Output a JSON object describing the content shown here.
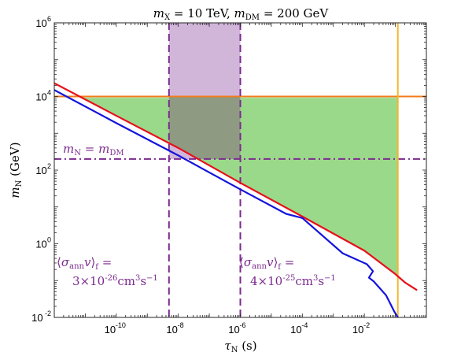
{
  "chart_data": {
    "type": "line",
    "title_parts": {
      "m": "m",
      "sub_x": "X",
      "eq1": " = 10 TeV, ",
      "m2": "m",
      "sub_dm": "DM",
      "eq2": " = 200 GeV"
    },
    "xlabel_parts": {
      "tau": "τ",
      "sub": "N",
      "unit": " (s)"
    },
    "ylabel_parts": {
      "m": "m",
      "sub": "N",
      "unit": " (GeV)"
    },
    "x_scale": "log",
    "y_scale": "log",
    "xlim": [
      1e-12,
      1
    ],
    "ylim": [
      0.01,
      1000000
    ],
    "x_tick_labels": [
      {
        "value": 1e-10,
        "base": "10",
        "exp": "-10"
      },
      {
        "value": 1e-08,
        "base": "10",
        "exp": "-8"
      },
      {
        "value": 1e-06,
        "base": "10",
        "exp": "-6"
      },
      {
        "value": 0.0001,
        "base": "10",
        "exp": "-4"
      },
      {
        "value": 0.01,
        "base": "10",
        "exp": "-2"
      }
    ],
    "y_tick_labels": [
      {
        "value": 0.01,
        "base": "10",
        "exp": "-2"
      },
      {
        "value": 1,
        "base": "10",
        "exp": "0"
      },
      {
        "value": 100,
        "base": "10",
        "exp": "2"
      },
      {
        "value": 10000,
        "base": "10",
        "exp": "4"
      },
      {
        "value": 1000000,
        "base": "10",
        "exp": "6"
      }
    ],
    "grid": false,
    "colors": {
      "red": "#e8101a",
      "blue": "#1414dd",
      "orange": "#f27c1b",
      "yellow": "#f2b630",
      "purple": "#7b2a8e",
      "purple_band": "#c9a9d3",
      "green": "#9bd98a"
    },
    "series": [
      {
        "color": "red",
        "x": [
          1e-12,
          1e-10,
          1e-08,
          1e-06,
          0.0001,
          0.01,
          0.1,
          0.2,
          0.5
        ],
        "y": [
          23000,
          3000,
          400,
          45,
          5.5,
          0.65,
          0.15,
          0.09,
          0.055
        ]
      },
      {
        "color": "blue",
        "x": [
          1e-12,
          1e-10,
          1e-08,
          1e-06,
          3e-05,
          0.0001,
          0.002,
          0.012,
          0.019,
          0.014,
          0.02,
          0.05,
          0.09,
          0.12
        ],
        "y": [
          15000,
          1900,
          250,
          30,
          6.5,
          5,
          0.55,
          0.28,
          0.18,
          0.12,
          0.095,
          0.04,
          0.015,
          0.01
        ]
      }
    ],
    "horizontal_lines": [
      {
        "y": 10000,
        "color": "orange",
        "style": "solid"
      },
      {
        "y": 200,
        "color": "purple",
        "style": "dash-dot",
        "label_parts": {
          "m": "m",
          "sub_n": "N",
          "eq": " = ",
          "m2": "m",
          "sub_dm": "DM"
        }
      }
    ],
    "vertical_lines": [
      {
        "x": 5e-09,
        "color": "purple",
        "style": "dashed"
      },
      {
        "x": 1e-06,
        "color": "purple",
        "style": "dashed"
      },
      {
        "x": 0.12,
        "color": "yellow",
        "style": "solid"
      }
    ],
    "shaded_regions": [
      {
        "type": "band",
        "x": [
          5e-09,
          1e-06
        ],
        "color": "purple_band"
      },
      {
        "type": "allowed",
        "color": "green",
        "x_max": 0.12,
        "y_max": 10000
      }
    ],
    "annotations": [
      {
        "lines": [
          {
            "kind": "sigma"
          },
          {
            "coef": "3",
            "exp": "-26"
          }
        ],
        "x": 1.5e-12,
        "y": 0.3
      },
      {
        "lines": [
          {
            "kind": "sigma"
          },
          {
            "coef": "4",
            "exp": "-25"
          }
        ],
        "x": 1.3e-06,
        "y": 0.3
      }
    ],
    "sigma_parts": {
      "lang": "⟨",
      "sigma": "σ",
      "sub_ann": "ann",
      "v": "v",
      "rang": "⟩",
      "sub_f": "f",
      "eq": " =",
      "times": "×",
      "ten": "10",
      "cm": "cm",
      "cm_exp": "3",
      "s": "s",
      "s_exp": "−1"
    }
  }
}
